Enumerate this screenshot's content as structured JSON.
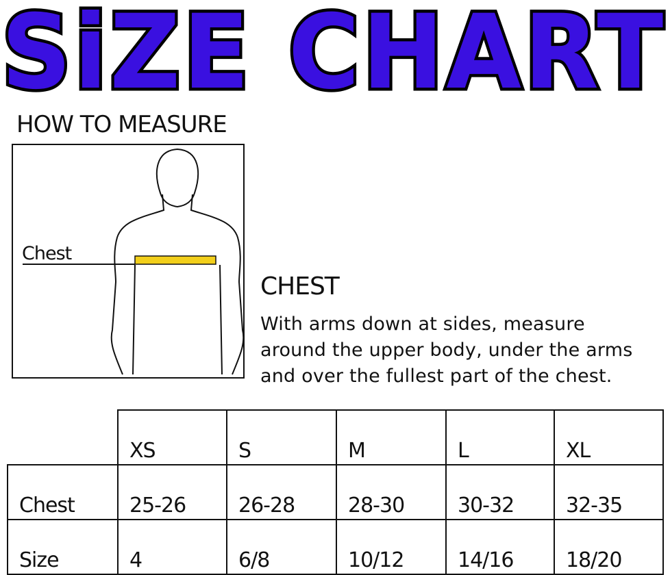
{
  "title": "SiZE CHART",
  "colors": {
    "title_fill": "#3a10e0",
    "tape": "#f2cf1b"
  },
  "how_to_measure": "HOW TO MEASURE",
  "figure_label": "Chest",
  "chest": {
    "heading": "CHEST",
    "description_lines": [
      "With arms down at sides, measure",
      "around the upper body, under the arms",
      "and over the fullest part of the chest."
    ]
  },
  "table": {
    "sizes": [
      "XS",
      "S",
      "M",
      "L",
      "XL"
    ],
    "rows": [
      {
        "label": "Chest",
        "values": [
          "25-26",
          "26-28",
          "28-30",
          "30-32",
          "32-35"
        ]
      },
      {
        "label": "Size",
        "values": [
          "4",
          "6/8",
          "10/12",
          "14/16",
          "18/20"
        ]
      }
    ]
  }
}
